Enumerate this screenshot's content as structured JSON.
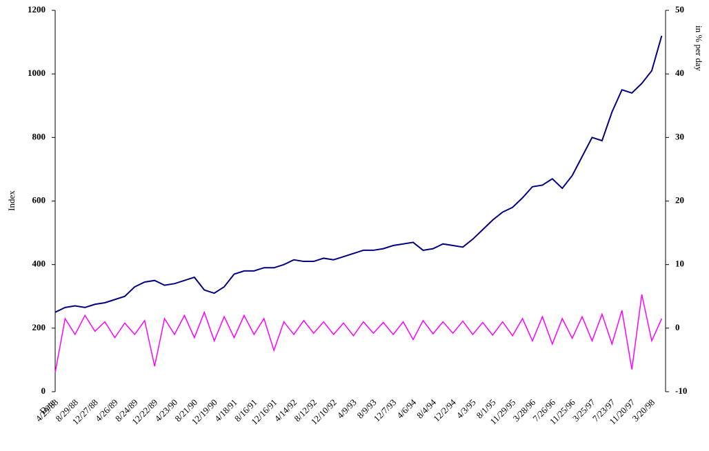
{
  "chart_data": {
    "type": "line",
    "x_label": "Date",
    "y_label": "Index",
    "y2_label": "in % per day",
    "categories": [
      "4/29/88",
      null,
      "8/29/88",
      null,
      "12/27/88",
      null,
      "4/26/89",
      null,
      "8/24/89",
      null,
      "12/22/89",
      null,
      "4/23/90",
      null,
      "8/21/90",
      null,
      "12/19/90",
      null,
      "4/18/91",
      null,
      "8/16/91",
      null,
      "12/16/91",
      null,
      "4/14/92",
      null,
      "8/12/92",
      null,
      "12/10/92",
      null,
      "4/9/93",
      null,
      "8/9/93",
      null,
      "12/7/93",
      null,
      "4/6/94",
      null,
      "8/4/94",
      null,
      "12/2/94",
      null,
      "4/3/95",
      null,
      "8/1/95",
      null,
      "11/29/95",
      null,
      "3/28/96",
      null,
      "7/26/96",
      null,
      "11/25/96",
      null,
      "3/25/97",
      null,
      "7/23/97",
      null,
      "11/20/97",
      null,
      "3/20/98",
      null
    ],
    "series": [
      {
        "name": "Index",
        "color": "#000080",
        "axis": "y",
        "values": [
          250,
          265,
          270,
          265,
          275,
          280,
          290,
          300,
          330,
          345,
          350,
          335,
          340,
          350,
          360,
          320,
          310,
          330,
          370,
          380,
          380,
          390,
          390,
          400,
          415,
          410,
          410,
          420,
          415,
          425,
          435,
          445,
          445,
          450,
          460,
          465,
          470,
          445,
          450,
          465,
          460,
          455,
          480,
          510,
          540,
          565,
          580,
          610,
          645,
          650,
          670,
          640,
          680,
          740,
          800,
          790,
          880,
          950,
          940,
          970,
          1010,
          1120
        ]
      },
      {
        "name": "in % per day",
        "color": "#ff00ff",
        "axis": "y2",
        "values": [
          -7,
          1.5,
          -1,
          2,
          -0.5,
          1,
          -1.5,
          0.8,
          -1,
          1.2,
          -6,
          1.5,
          -1,
          2,
          -1.5,
          2.5,
          -2,
          1.8,
          -1.5,
          2,
          -1,
          1.5,
          -3.5,
          1,
          -1,
          1.2,
          -0.8,
          1,
          -1,
          0.8,
          -1.2,
          1,
          -0.8,
          0.9,
          -1,
          1,
          -1.8,
          1.2,
          -0.9,
          1,
          -0.8,
          1.1,
          -1,
          0.9,
          -1.1,
          1,
          -1.2,
          1.5,
          -2,
          1.8,
          -2.5,
          1.5,
          -1.6,
          1.8,
          -2,
          2.2,
          -2.5,
          2.8,
          -6.5,
          5.3,
          -2,
          1.5
        ]
      }
    ],
    "ylim": [
      0,
      1200
    ],
    "yticks": [
      0,
      200,
      400,
      600,
      800,
      1000,
      1200
    ],
    "y2lim": [
      -10,
      50
    ],
    "y2ticks": [
      -10,
      0,
      10,
      20,
      30,
      40,
      50
    ],
    "grid": false
  }
}
